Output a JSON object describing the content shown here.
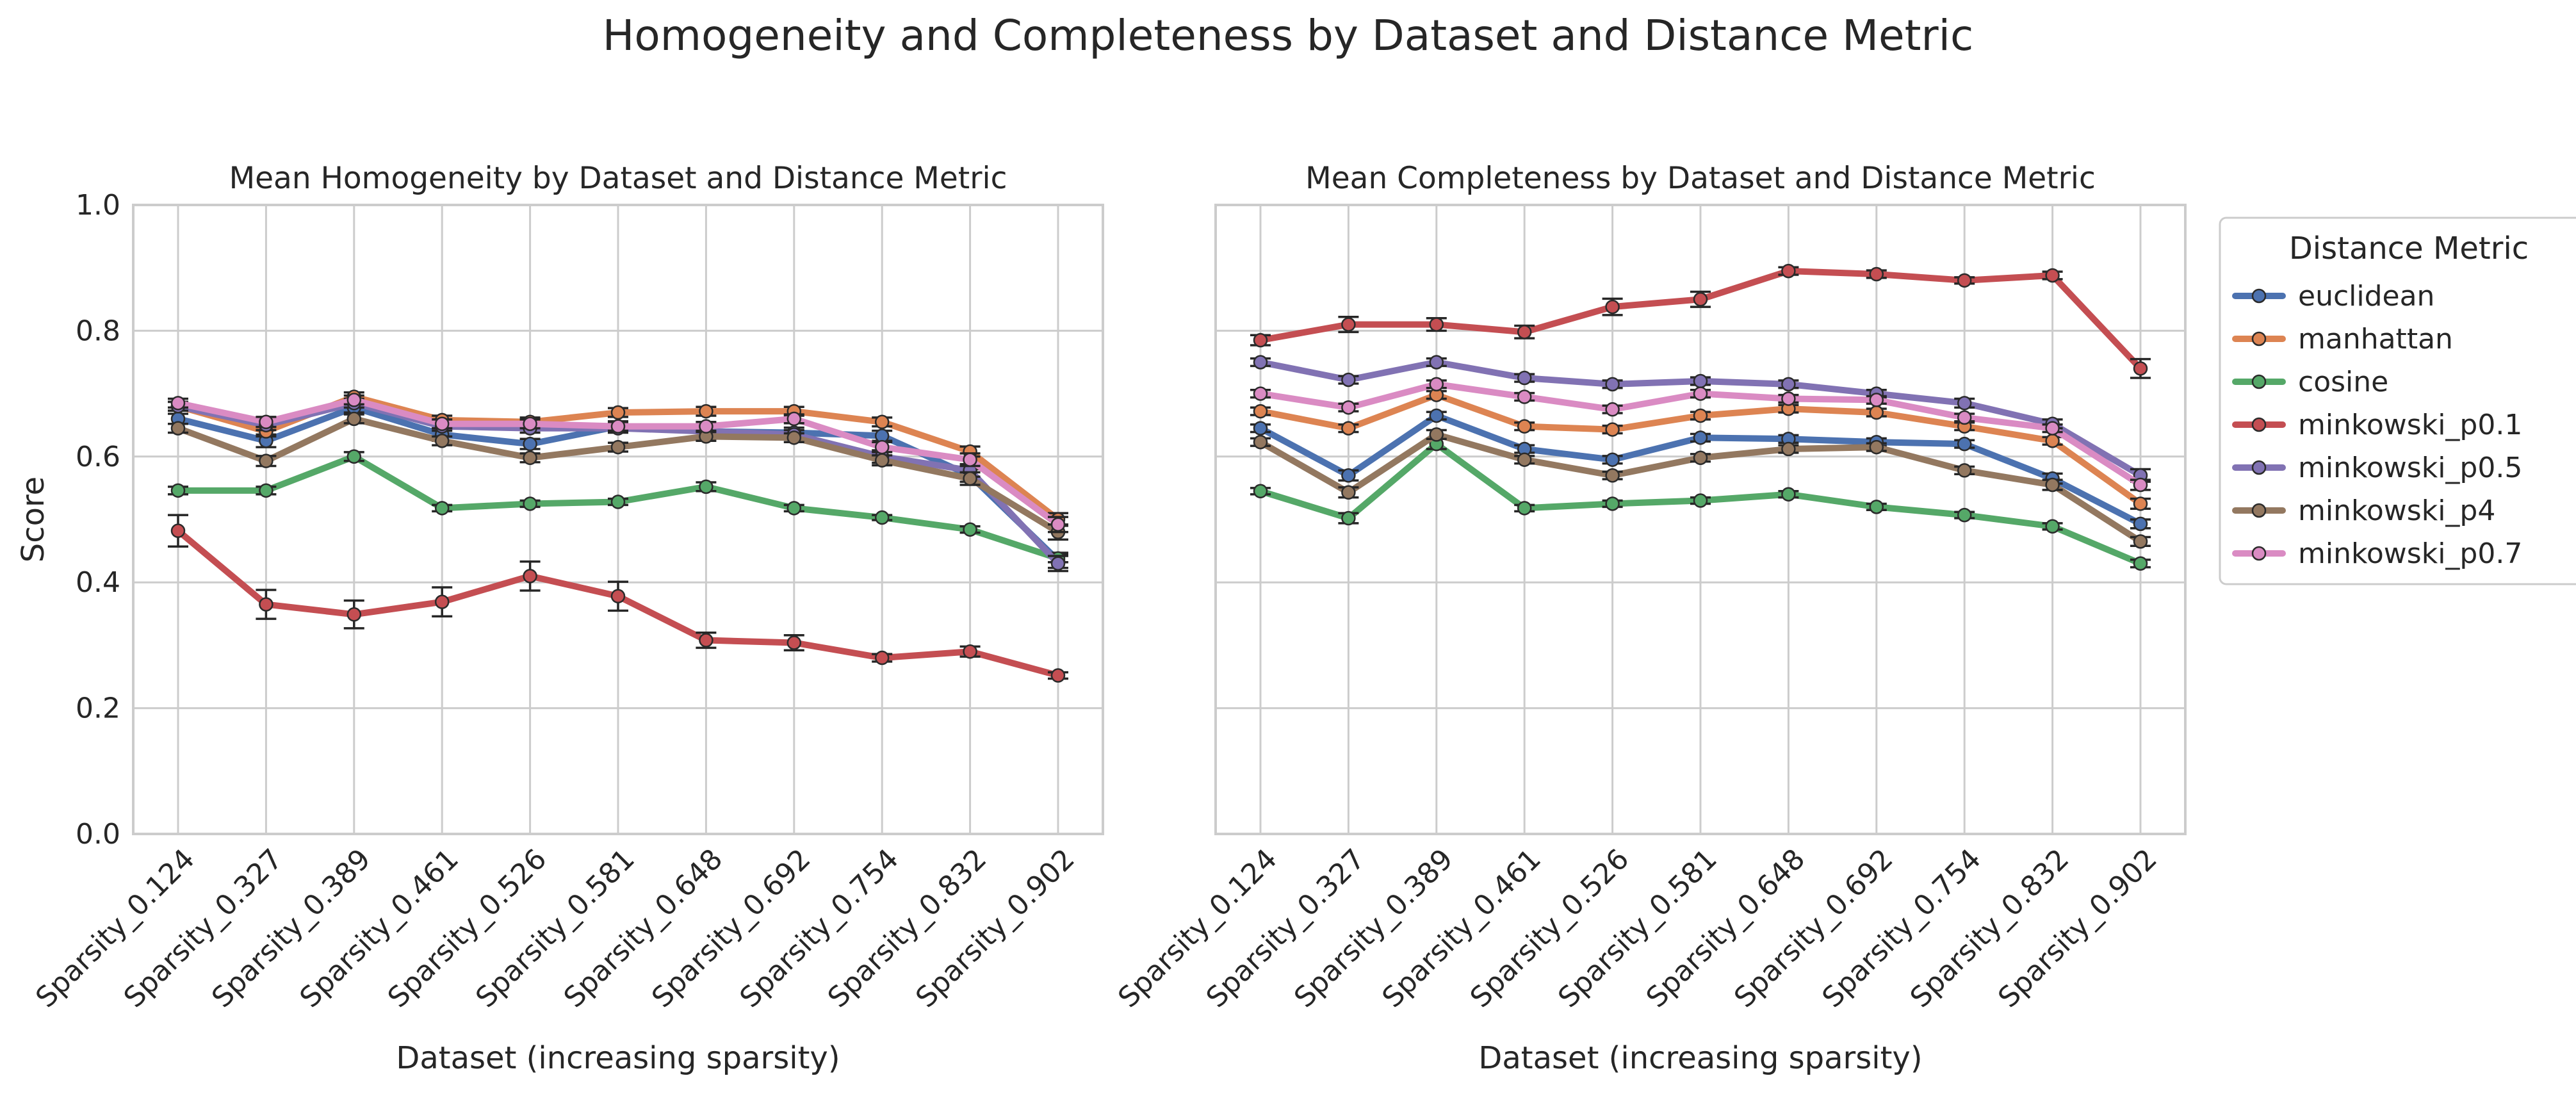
{
  "suptitle": "Homogeneity and Completeness by Dataset and Distance Metric",
  "chart_data": [
    {
      "type": "line",
      "title": "Mean Homogeneity by Dataset and Distance Metric",
      "xlabel": "Dataset (increasing sparsity)",
      "ylabel": "Score",
      "ylim": [
        0,
        1
      ],
      "yticks": [
        "0.0",
        "0.2",
        "0.4",
        "0.6",
        "0.8",
        "1.0"
      ],
      "grid": true,
      "error_bars": true,
      "categories": [
        "Sparsity_0.124",
        "Sparsity_0.327",
        "Sparsity_0.389",
        "Sparsity_0.461",
        "Sparsity_0.526",
        "Sparsity_0.581",
        "Sparsity_0.648",
        "Sparsity_0.692",
        "Sparsity_0.754",
        "Sparsity_0.832",
        "Sparsity_0.902"
      ],
      "series": [
        {
          "name": "euclidean",
          "color": "#4c72b0",
          "values": [
            0.66,
            0.625,
            0.678,
            0.635,
            0.62,
            0.648,
            0.64,
            0.638,
            0.633,
            0.57,
            0.435
          ],
          "err": [
            0.008,
            0.01,
            0.008,
            0.01,
            0.008,
            0.008,
            0.008,
            0.008,
            0.008,
            0.01,
            0.012
          ]
        },
        {
          "name": "manhattan",
          "color": "#dd8452",
          "values": [
            0.68,
            0.64,
            0.695,
            0.658,
            0.655,
            0.67,
            0.672,
            0.672,
            0.655,
            0.608,
            0.5
          ],
          "err": [
            0.007,
            0.008,
            0.007,
            0.007,
            0.007,
            0.007,
            0.007,
            0.007,
            0.007,
            0.008,
            0.01
          ]
        },
        {
          "name": "cosine",
          "color": "#55a868",
          "values": [
            0.546,
            0.546,
            0.6,
            0.518,
            0.525,
            0.528,
            0.552,
            0.518,
            0.503,
            0.484,
            0.438
          ],
          "err": [
            0.006,
            0.006,
            0.007,
            0.005,
            0.005,
            0.005,
            0.007,
            0.005,
            0.004,
            0.005,
            0.006
          ]
        },
        {
          "name": "minkowski_p0.1",
          "color": "#c44e52",
          "values": [
            0.482,
            0.365,
            0.349,
            0.369,
            0.41,
            0.378,
            0.308,
            0.304,
            0.28,
            0.29,
            0.252
          ],
          "err": [
            0.025,
            0.023,
            0.022,
            0.023,
            0.023,
            0.023,
            0.012,
            0.012,
            0.006,
            0.008,
            0.005
          ]
        },
        {
          "name": "minkowski_p0.5",
          "color": "#8172b3",
          "values": [
            0.68,
            0.65,
            0.685,
            0.648,
            0.645,
            0.645,
            0.64,
            0.635,
            0.6,
            0.578,
            0.43
          ],
          "err": [
            0.007,
            0.008,
            0.007,
            0.007,
            0.007,
            0.007,
            0.007,
            0.007,
            0.01,
            0.01,
            0.012
          ]
        },
        {
          "name": "minkowski_p4",
          "color": "#937860",
          "values": [
            0.645,
            0.593,
            0.66,
            0.625,
            0.598,
            0.615,
            0.632,
            0.63,
            0.594,
            0.565,
            0.48
          ],
          "err": [
            0.007,
            0.008,
            0.007,
            0.007,
            0.007,
            0.007,
            0.007,
            0.007,
            0.008,
            0.01,
            0.012
          ]
        },
        {
          "name": "minkowski_p0.7",
          "color": "#da8bc3",
          "values": [
            0.685,
            0.655,
            0.69,
            0.652,
            0.652,
            0.648,
            0.648,
            0.66,
            0.615,
            0.595,
            0.492
          ],
          "err": [
            0.007,
            0.008,
            0.007,
            0.007,
            0.007,
            0.007,
            0.007,
            0.007,
            0.008,
            0.01,
            0.012
          ]
        }
      ]
    },
    {
      "type": "line",
      "title": "Mean Completeness by Dataset and Distance Metric",
      "xlabel": "Dataset (increasing sparsity)",
      "ylabel": "",
      "ylim": [
        0,
        1
      ],
      "sharey": true,
      "grid": true,
      "error_bars": true,
      "categories": [
        "Sparsity_0.124",
        "Sparsity_0.327",
        "Sparsity_0.389",
        "Sparsity_0.461",
        "Sparsity_0.526",
        "Sparsity_0.581",
        "Sparsity_0.648",
        "Sparsity_0.692",
        "Sparsity_0.754",
        "Sparsity_0.832",
        "Sparsity_0.902"
      ],
      "series": [
        {
          "name": "euclidean",
          "color": "#4c72b0",
          "values": [
            0.645,
            0.57,
            0.665,
            0.612,
            0.595,
            0.63,
            0.628,
            0.623,
            0.62,
            0.565,
            0.493
          ],
          "err": [
            0.006,
            0.008,
            0.006,
            0.006,
            0.006,
            0.006,
            0.006,
            0.006,
            0.006,
            0.008,
            0.007
          ]
        },
        {
          "name": "manhattan",
          "color": "#dd8452",
          "values": [
            0.672,
            0.645,
            0.698,
            0.648,
            0.643,
            0.665,
            0.676,
            0.67,
            0.648,
            0.625,
            0.525
          ],
          "err": [
            0.006,
            0.006,
            0.006,
            0.006,
            0.006,
            0.006,
            0.006,
            0.006,
            0.006,
            0.006,
            0.008
          ]
        },
        {
          "name": "cosine",
          "color": "#55a868",
          "values": [
            0.545,
            0.502,
            0.62,
            0.518,
            0.525,
            0.53,
            0.54,
            0.52,
            0.507,
            0.489,
            0.43
          ],
          "err": [
            0.005,
            0.008,
            0.008,
            0.005,
            0.005,
            0.005,
            0.005,
            0.005,
            0.005,
            0.005,
            0.006
          ]
        },
        {
          "name": "minkowski_p0.1",
          "color": "#c44e52",
          "values": [
            0.785,
            0.81,
            0.81,
            0.798,
            0.838,
            0.85,
            0.895,
            0.89,
            0.88,
            0.888,
            0.74
          ],
          "err": [
            0.008,
            0.012,
            0.01,
            0.01,
            0.013,
            0.012,
            0.006,
            0.006,
            0.005,
            0.006,
            0.015
          ]
        },
        {
          "name": "minkowski_p0.5",
          "color": "#8172b3",
          "values": [
            0.75,
            0.722,
            0.75,
            0.725,
            0.715,
            0.72,
            0.715,
            0.7,
            0.685,
            0.652,
            0.57
          ],
          "err": [
            0.006,
            0.006,
            0.006,
            0.006,
            0.006,
            0.006,
            0.006,
            0.006,
            0.007,
            0.007,
            0.01
          ]
        },
        {
          "name": "minkowski_p4",
          "color": "#937860",
          "values": [
            0.623,
            0.543,
            0.635,
            0.595,
            0.57,
            0.598,
            0.612,
            0.615,
            0.578,
            0.555,
            0.465
          ],
          "err": [
            0.006,
            0.008,
            0.007,
            0.006,
            0.006,
            0.006,
            0.006,
            0.006,
            0.006,
            0.008,
            0.007
          ]
        },
        {
          "name": "minkowski_p0.7",
          "color": "#da8bc3",
          "values": [
            0.7,
            0.678,
            0.715,
            0.695,
            0.675,
            0.7,
            0.692,
            0.69,
            0.662,
            0.645,
            0.555
          ],
          "err": [
            0.006,
            0.006,
            0.006,
            0.006,
            0.006,
            0.006,
            0.006,
            0.006,
            0.006,
            0.006,
            0.008
          ]
        }
      ]
    }
  ],
  "legend": {
    "title": "Distance Metric",
    "placement": "right-outside-upper",
    "entries": [
      "euclidean",
      "manhattan",
      "cosine",
      "minkowski_p0.1",
      "minkowski_p0.5",
      "minkowski_p4",
      "minkowski_p0.7"
    ]
  }
}
